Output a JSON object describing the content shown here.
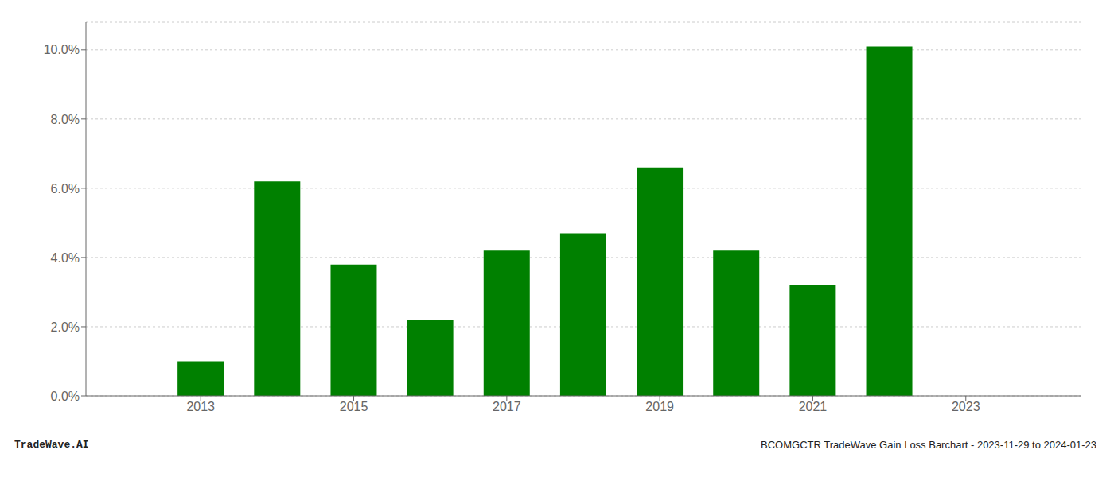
{
  "chart_data": {
    "type": "bar",
    "x": [
      2013,
      2014,
      2015,
      2016,
      2017,
      2018,
      2019,
      2020,
      2021,
      2022
    ],
    "values": [
      0.01,
      0.062,
      0.038,
      0.022,
      0.042,
      0.047,
      0.066,
      0.042,
      0.032,
      0.101
    ],
    "color": "#008000",
    "xlim": [
      2011.5,
      2024.5
    ],
    "xticks": [
      2013,
      2015,
      2017,
      2019,
      2021,
      2023
    ],
    "ylim": [
      0,
      0.108
    ],
    "yticks": [
      {
        "value": 0.0,
        "label": "0.0%"
      },
      {
        "value": 0.02,
        "label": "2.0%"
      },
      {
        "value": 0.04,
        "label": "4.0%"
      },
      {
        "value": 0.06,
        "label": "6.0%"
      },
      {
        "value": 0.08,
        "label": "8.0%"
      },
      {
        "value": 0.1,
        "label": "10.0%"
      }
    ],
    "grid": true,
    "annotations": [
      "TradeWave.AI",
      "BCOMGCTR TradeWave Gain Loss Barchart - 2023-11-29 to 2024-01-23"
    ]
  }
}
